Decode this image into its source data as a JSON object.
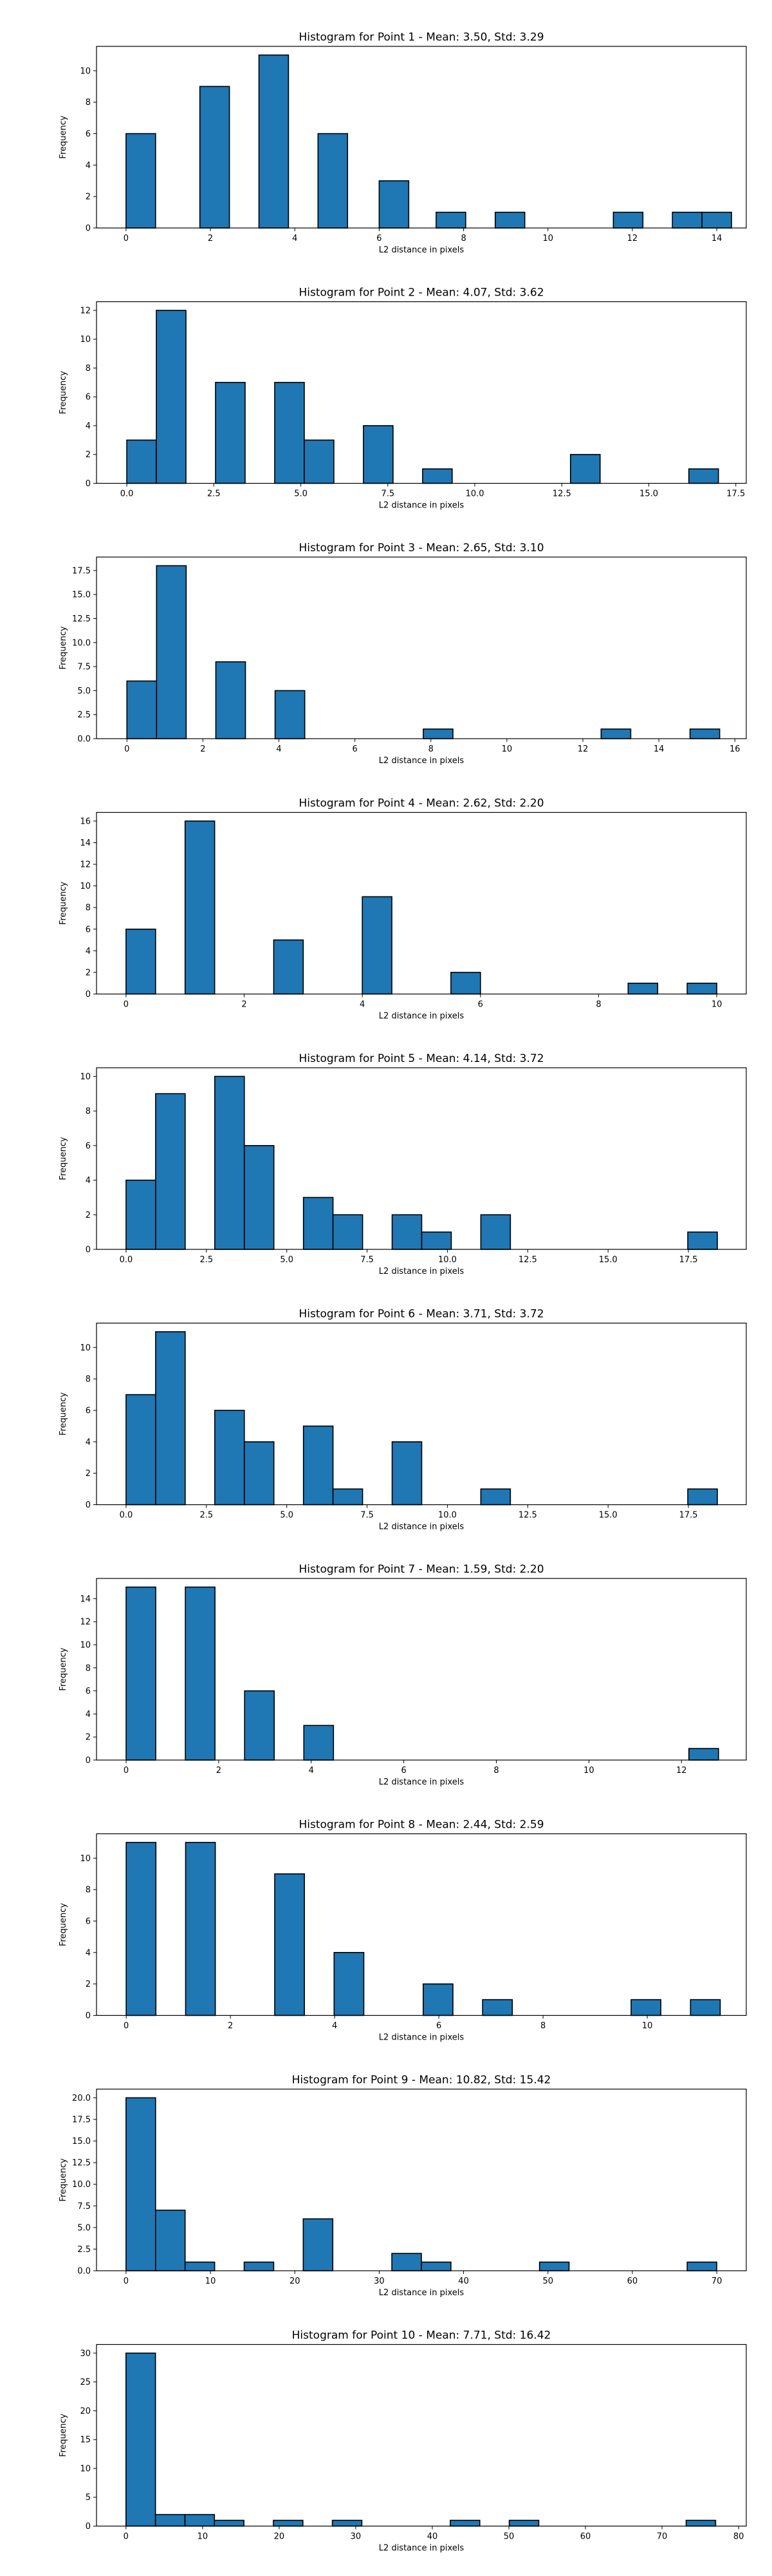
{
  "chart_data": [
    {
      "type": "bar",
      "title": "Histogram for Point 1 - Mean: 3.50, Std: 3.29",
      "xlabel": "L2 distance in pixels",
      "ylabel": "Frequency",
      "xlim": [
        -0.7,
        14.7
      ],
      "ylim": [
        0,
        11.55
      ],
      "xticks": [
        0,
        2,
        4,
        6,
        8,
        10,
        12,
        14
      ],
      "yticks": [
        0,
        2,
        4,
        6,
        8,
        10
      ],
      "bin_width": 0.7,
      "bins": [
        {
          "x": 0.0,
          "value": 6
        },
        {
          "x": 1.75,
          "value": 9
        },
        {
          "x": 3.15,
          "value": 11
        },
        {
          "x": 4.55,
          "value": 6
        },
        {
          "x": 6.0,
          "value": 3
        },
        {
          "x": 7.35,
          "value": 1
        },
        {
          "x": 8.75,
          "value": 1
        },
        {
          "x": 11.55,
          "value": 1
        },
        {
          "x": 12.95,
          "value": 1
        },
        {
          "x": 13.65,
          "value": 1
        }
      ]
    },
    {
      "type": "bar",
      "title": "Histogram for Point 2 - Mean: 4.07, Std: 3.62",
      "xlabel": "L2 distance in pixels",
      "ylabel": "Frequency",
      "xlim": [
        -0.87,
        17.8
      ],
      "ylim": [
        0,
        12.6
      ],
      "xticks": [
        0.0,
        2.5,
        5.0,
        7.5,
        10.0,
        12.5,
        15.0,
        17.5
      ],
      "xtick_labels": [
        "0.0",
        "2.5",
        "5.0",
        "7.5",
        "10.0",
        "12.5",
        "15.0",
        "17.5"
      ],
      "yticks": [
        0,
        2,
        4,
        6,
        8,
        10,
        12
      ],
      "bin_width": 0.85,
      "bins": [
        {
          "x": 0.0,
          "value": 3
        },
        {
          "x": 0.85,
          "value": 12
        },
        {
          "x": 2.55,
          "value": 7
        },
        {
          "x": 4.25,
          "value": 7
        },
        {
          "x": 5.1,
          "value": 3
        },
        {
          "x": 6.8,
          "value": 4
        },
        {
          "x": 8.5,
          "value": 1
        },
        {
          "x": 12.75,
          "value": 2
        },
        {
          "x": 16.15,
          "value": 1
        }
      ]
    },
    {
      "type": "bar",
      "title": "Histogram for Point 3 - Mean: 2.65, Std: 3.10",
      "xlabel": "L2 distance in pixels",
      "ylabel": "Frequency",
      "xlim": [
        -0.8,
        16.3
      ],
      "ylim": [
        0,
        18.9
      ],
      "xticks": [
        0,
        2,
        4,
        6,
        8,
        10,
        12,
        14,
        16
      ],
      "yticks": [
        0.0,
        2.5,
        5.0,
        7.5,
        10.0,
        12.5,
        15.0,
        17.5
      ],
      "ytick_labels": [
        "0.0",
        "2.5",
        "5.0",
        "7.5",
        "10.0",
        "12.5",
        "15.0",
        "17.5"
      ],
      "bin_width": 0.78,
      "bins": [
        {
          "x": 0.0,
          "value": 6
        },
        {
          "x": 0.78,
          "value": 18
        },
        {
          "x": 2.34,
          "value": 8
        },
        {
          "x": 3.9,
          "value": 5
        },
        {
          "x": 7.8,
          "value": 1
        },
        {
          "x": 12.48,
          "value": 1
        },
        {
          "x": 14.82,
          "value": 1
        }
      ]
    },
    {
      "type": "bar",
      "title": "Histogram for Point 4 - Mean: 2.62, Std: 2.20",
      "xlabel": "L2 distance in pixels",
      "ylabel": "Frequency",
      "xlim": [
        -0.5,
        10.5
      ],
      "ylim": [
        0,
        16.8
      ],
      "xticks": [
        0,
        2,
        4,
        6,
        8,
        10
      ],
      "yticks": [
        0,
        2,
        4,
        6,
        8,
        10,
        12,
        14,
        16
      ],
      "bin_width": 0.5,
      "bins": [
        {
          "x": 0.0,
          "value": 6
        },
        {
          "x": 1.0,
          "value": 16
        },
        {
          "x": 2.5,
          "value": 5
        },
        {
          "x": 4.0,
          "value": 9
        },
        {
          "x": 5.5,
          "value": 2
        },
        {
          "x": 8.5,
          "value": 1
        },
        {
          "x": 9.5,
          "value": 1
        }
      ]
    },
    {
      "type": "bar",
      "title": "Histogram for Point 5 - Mean: 4.14, Std: 3.72",
      "xlabel": "L2 distance in pixels",
      "ylabel": "Frequency",
      "xlim": [
        -0.92,
        19.3
      ],
      "ylim": [
        0,
        10.5
      ],
      "xticks": [
        0.0,
        2.5,
        5.0,
        7.5,
        10.0,
        12.5,
        15.0,
        17.5
      ],
      "xtick_labels": [
        "0.0",
        "2.5",
        "5.0",
        "7.5",
        "10.0",
        "12.5",
        "15.0",
        "17.5"
      ],
      "yticks": [
        0,
        2,
        4,
        6,
        8,
        10
      ],
      "bin_width": 0.92,
      "bins": [
        {
          "x": 0.0,
          "value": 4
        },
        {
          "x": 0.92,
          "value": 9
        },
        {
          "x": 2.76,
          "value": 10
        },
        {
          "x": 3.68,
          "value": 6
        },
        {
          "x": 5.52,
          "value": 3
        },
        {
          "x": 6.44,
          "value": 2
        },
        {
          "x": 8.28,
          "value": 2
        },
        {
          "x": 9.2,
          "value": 1
        },
        {
          "x": 11.04,
          "value": 2
        },
        {
          "x": 17.48,
          "value": 1
        }
      ]
    },
    {
      "type": "bar",
      "title": "Histogram for Point 6 - Mean: 3.71, Std: 3.72",
      "xlabel": "L2 distance in pixels",
      "ylabel": "Frequency",
      "xlim": [
        -0.92,
        19.3
      ],
      "ylim": [
        0,
        11.55
      ],
      "xticks": [
        0.0,
        2.5,
        5.0,
        7.5,
        10.0,
        12.5,
        15.0,
        17.5
      ],
      "xtick_labels": [
        "0.0",
        "2.5",
        "5.0",
        "7.5",
        "10.0",
        "12.5",
        "15.0",
        "17.5"
      ],
      "yticks": [
        0,
        2,
        4,
        6,
        8,
        10
      ],
      "bin_width": 0.92,
      "bins": [
        {
          "x": 0.0,
          "value": 7
        },
        {
          "x": 0.92,
          "value": 11
        },
        {
          "x": 2.76,
          "value": 6
        },
        {
          "x": 3.68,
          "value": 4
        },
        {
          "x": 5.52,
          "value": 5
        },
        {
          "x": 6.44,
          "value": 1
        },
        {
          "x": 8.28,
          "value": 4
        },
        {
          "x": 11.04,
          "value": 1
        },
        {
          "x": 17.48,
          "value": 1
        }
      ]
    },
    {
      "type": "bar",
      "title": "Histogram for Point 7 - Mean: 1.59, Std: 2.20",
      "xlabel": "L2 distance in pixels",
      "ylabel": "Frequency",
      "xlim": [
        -0.64,
        13.4
      ],
      "ylim": [
        0,
        15.75
      ],
      "xticks": [
        0,
        2,
        4,
        6,
        8,
        10,
        12
      ],
      "yticks": [
        0,
        2,
        4,
        6,
        8,
        10,
        12,
        14
      ],
      "bin_width": 0.64,
      "bins": [
        {
          "x": 0.0,
          "value": 15
        },
        {
          "x": 1.28,
          "value": 15
        },
        {
          "x": 2.56,
          "value": 6
        },
        {
          "x": 3.84,
          "value": 3
        },
        {
          "x": 12.16,
          "value": 1
        }
      ]
    },
    {
      "type": "bar",
      "title": "Histogram for Point 8 - Mean: 2.44, Std: 2.59",
      "xlabel": "L2 distance in pixels",
      "ylabel": "Frequency",
      "xlim": [
        -0.57,
        11.9
      ],
      "ylim": [
        0,
        11.55
      ],
      "xticks": [
        0,
        2,
        4,
        6,
        8,
        10
      ],
      "yticks": [
        0,
        2,
        4,
        6,
        8,
        10
      ],
      "bin_width": 0.57,
      "bins": [
        {
          "x": 0.0,
          "value": 11
        },
        {
          "x": 1.14,
          "value": 11
        },
        {
          "x": 2.85,
          "value": 9
        },
        {
          "x": 3.99,
          "value": 4
        },
        {
          "x": 5.7,
          "value": 2
        },
        {
          "x": 6.84,
          "value": 1
        },
        {
          "x": 9.69,
          "value": 1
        },
        {
          "x": 10.83,
          "value": 1
        }
      ]
    },
    {
      "type": "bar",
      "title": "Histogram for Point 9 - Mean: 10.82, Std: 15.42",
      "xlabel": "L2 distance in pixels",
      "ylabel": "Frequency",
      "xlim": [
        -3.5,
        73.5
      ],
      "ylim": [
        0,
        21.0
      ],
      "xticks": [
        0,
        10,
        20,
        30,
        40,
        50,
        60,
        70
      ],
      "yticks": [
        0.0,
        2.5,
        5.0,
        7.5,
        10.0,
        12.5,
        15.0,
        17.5,
        20.0
      ],
      "ytick_labels": [
        "0.0",
        "2.5",
        "5.0",
        "7.5",
        "10.0",
        "12.5",
        "15.0",
        "17.5",
        "20.0"
      ],
      "bin_width": 3.5,
      "bins": [
        {
          "x": 0.0,
          "value": 20
        },
        {
          "x": 3.5,
          "value": 7
        },
        {
          "x": 7.0,
          "value": 1
        },
        {
          "x": 14.0,
          "value": 1
        },
        {
          "x": 21.0,
          "value": 6
        },
        {
          "x": 31.5,
          "value": 2
        },
        {
          "x": 35.0,
          "value": 1
        },
        {
          "x": 49.0,
          "value": 1
        },
        {
          "x": 66.5,
          "value": 1
        }
      ]
    },
    {
      "type": "bar",
      "title": "Histogram for Point 10 - Mean: 7.71, Std: 16.42",
      "xlabel": "L2 distance in pixels",
      "ylabel": "Frequency",
      "xlim": [
        -3.85,
        81.0
      ],
      "ylim": [
        0,
        31.5
      ],
      "xticks": [
        0,
        10,
        20,
        30,
        40,
        50,
        60,
        70,
        80
      ],
      "yticks": [
        0,
        5,
        10,
        15,
        20,
        25,
        30
      ],
      "bin_width": 3.85,
      "bins": [
        {
          "x": 0.0,
          "value": 30
        },
        {
          "x": 3.85,
          "value": 2
        },
        {
          "x": 7.7,
          "value": 2
        },
        {
          "x": 11.55,
          "value": 1
        },
        {
          "x": 19.25,
          "value": 1
        },
        {
          "x": 26.95,
          "value": 1
        },
        {
          "x": 42.35,
          "value": 1
        },
        {
          "x": 50.05,
          "value": 1
        },
        {
          "x": 73.15,
          "value": 1
        }
      ]
    }
  ]
}
